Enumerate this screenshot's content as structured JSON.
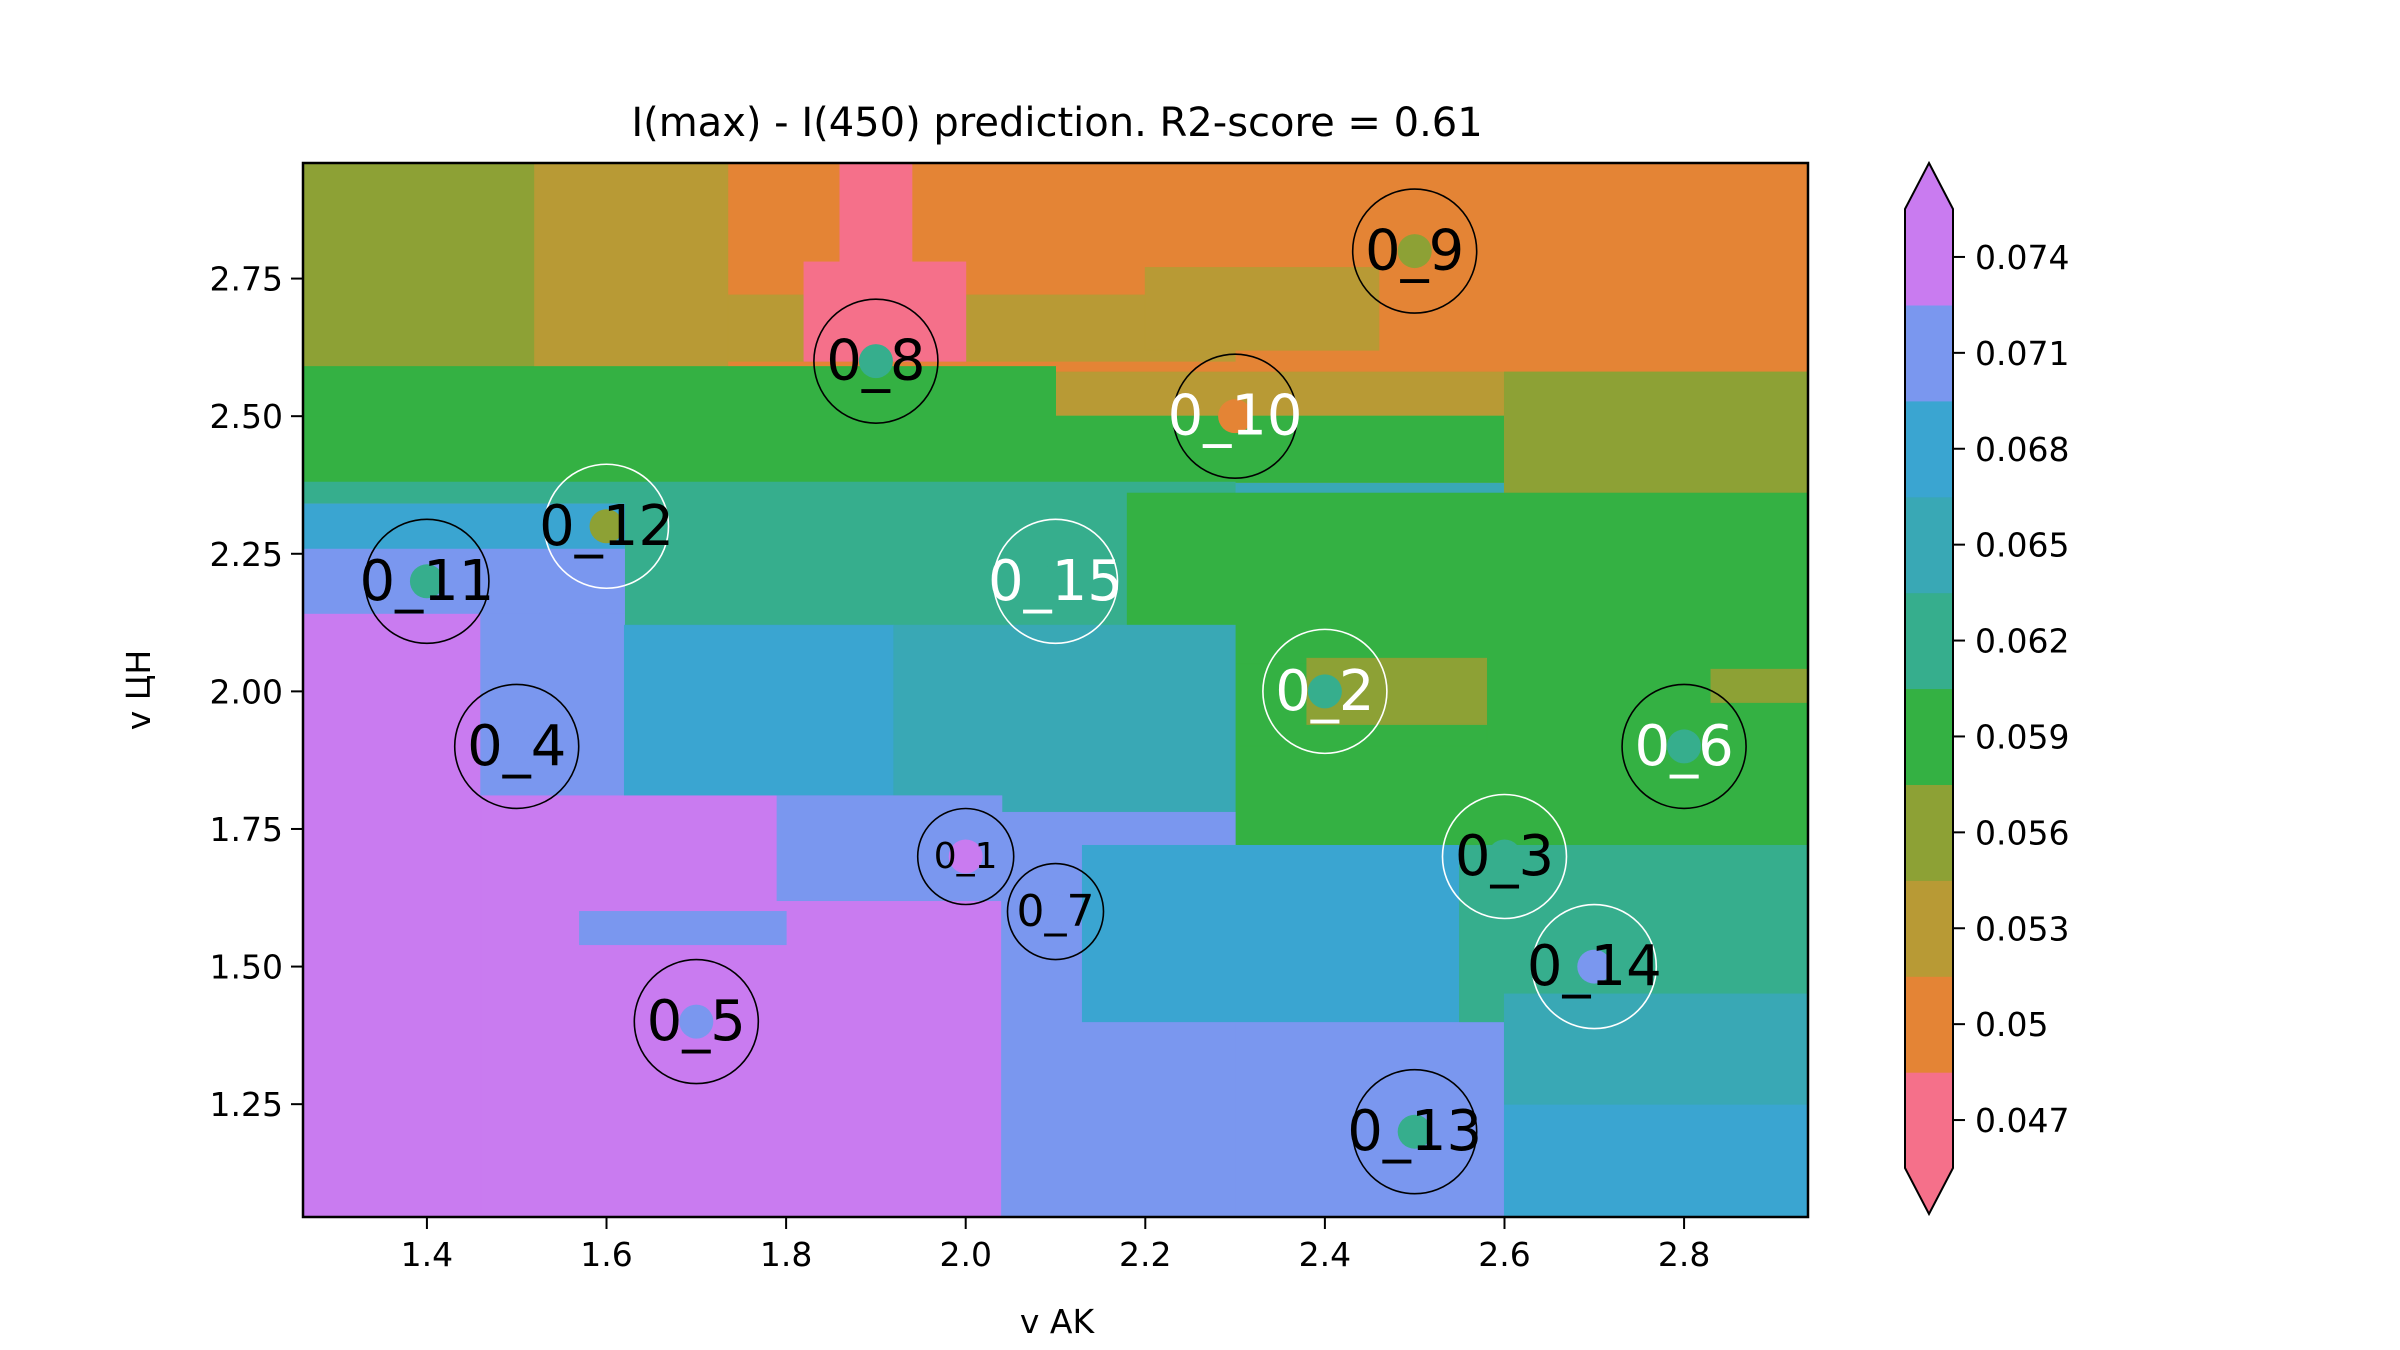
{
  "chart_data": {
    "type": "heatmap",
    "title": "I(max) - I(450) prediction. R2-score = 0.61",
    "xlabel": "v AK",
    "ylabel": "v ЦН",
    "xlim": [
      1.262,
      2.938
    ],
    "ylim": [
      1.045,
      2.96
    ],
    "xticks": [
      1.4,
      1.6,
      1.8,
      2.0,
      2.2,
      2.4,
      2.6,
      2.8
    ],
    "xtick_labels": [
      "1.4",
      "1.6",
      "1.8",
      "2.0",
      "2.2",
      "2.4",
      "2.6",
      "2.8"
    ],
    "yticks": [
      1.25,
      1.5,
      1.75,
      2.0,
      2.25,
      2.5,
      2.75
    ],
    "ytick_labels": [
      "1.25",
      "1.50",
      "1.75",
      "2.00",
      "2.25",
      "2.50",
      "2.75"
    ],
    "grid": false,
    "colorbar": {
      "levels": [
        0.047,
        0.05,
        0.053,
        0.056,
        0.059,
        0.062,
        0.065,
        0.068,
        0.071,
        0.074
      ],
      "labels": [
        "0.047",
        "0.05",
        "0.053",
        "0.056",
        "0.059",
        "0.062",
        "0.065",
        "0.068",
        "0.071",
        "0.074"
      ],
      "colors": [
        "#f5708a",
        "#e48435",
        "#b89a35",
        "#8da135",
        "#34b143",
        "#36ae8d",
        "#39a8b5",
        "#3aa5d1",
        "#7a97ef",
        "#c97bf0"
      ],
      "extend": "both"
    },
    "regions": [
      {
        "xmin": 1.262,
        "xmax": 2.938,
        "ymin": 1.045,
        "ymax": 2.96,
        "class": 6
      },
      {
        "xmin": 1.262,
        "xmax": 2.938,
        "ymin": 2.58,
        "ymax": 2.96,
        "class": 1
      },
      {
        "xmin": 1.262,
        "xmax": 1.52,
        "ymin": 2.58,
        "ymax": 2.96,
        "class": 3
      },
      {
        "xmin": 1.52,
        "xmax": 1.735,
        "ymin": 2.58,
        "ymax": 2.96,
        "class": 2
      },
      {
        "xmin": 1.735,
        "xmax": 2.3,
        "ymin": 2.6,
        "ymax": 2.72,
        "class": 2
      },
      {
        "xmin": 2.2,
        "xmax": 2.46,
        "ymin": 2.62,
        "ymax": 2.77,
        "class": 2
      },
      {
        "xmin": 1.86,
        "xmax": 1.94,
        "ymin": 2.62,
        "ymax": 2.96,
        "class": 0
      },
      {
        "xmin": 1.82,
        "xmax": 2.0,
        "ymin": 2.6,
        "ymax": 2.78,
        "class": 0
      },
      {
        "xmin": 1.262,
        "xmax": 2.938,
        "ymin": 2.47,
        "ymax": 2.58,
        "class": 2
      },
      {
        "xmin": 2.938,
        "xmax": 2.938,
        "ymin": 2.47,
        "ymax": 2.58,
        "class": 2
      },
      {
        "xmin": 1.262,
        "xmax": 2.938,
        "ymin": 2.38,
        "ymax": 2.47,
        "class": 3
      },
      {
        "xmin": 1.262,
        "xmax": 2.1,
        "ymin": 2.47,
        "ymax": 2.59,
        "class": 4
      },
      {
        "xmin": 1.262,
        "xmax": 2.938,
        "ymin": 2.38,
        "ymax": 2.5,
        "class": 4
      },
      {
        "xmin": 2.6,
        "xmax": 2.938,
        "ymin": 2.36,
        "ymax": 2.58,
        "class": 3
      },
      {
        "xmin": 1.262,
        "xmax": 2.3,
        "ymin": 2.1,
        "ymax": 2.38,
        "class": 5
      },
      {
        "xmin": 2.18,
        "xmax": 2.938,
        "ymin": 1.72,
        "ymax": 2.36,
        "class": 4
      },
      {
        "xmin": 2.25,
        "xmax": 2.58,
        "ymin": 1.9,
        "ymax": 2.05,
        "class": 4
      },
      {
        "xmin": 2.38,
        "xmax": 2.58,
        "ymin": 1.94,
        "ymax": 2.06,
        "class": 3
      },
      {
        "xmin": 2.83,
        "xmax": 2.938,
        "ymin": 1.98,
        "ymax": 2.04,
        "class": 3
      },
      {
        "xmin": 1.262,
        "xmax": 1.62,
        "ymin": 2.14,
        "ymax": 2.34,
        "class": 8
      },
      {
        "xmin": 1.262,
        "xmax": 1.62,
        "ymin": 2.26,
        "ymax": 2.34,
        "class": 7
      },
      {
        "xmin": 1.262,
        "xmax": 1.46,
        "ymin": 1.045,
        "ymax": 2.14,
        "class": 9
      },
      {
        "xmin": 1.46,
        "xmax": 1.62,
        "ymin": 1.81,
        "ymax": 2.14,
        "class": 8
      },
      {
        "xmin": 1.62,
        "xmax": 1.92,
        "ymin": 1.78,
        "ymax": 2.12,
        "class": 7
      },
      {
        "xmin": 1.92,
        "xmax": 2.3,
        "ymin": 1.72,
        "ymax": 2.12,
        "class": 6
      },
      {
        "xmin": 1.46,
        "xmax": 2.04,
        "ymin": 1.045,
        "ymax": 1.81,
        "class": 9
      },
      {
        "xmin": 1.79,
        "xmax": 2.04,
        "ymin": 1.62,
        "ymax": 1.81,
        "class": 8
      },
      {
        "xmin": 1.57,
        "xmax": 1.8,
        "ymin": 1.54,
        "ymax": 1.6,
        "class": 8
      },
      {
        "xmin": 2.04,
        "xmax": 2.3,
        "ymin": 1.045,
        "ymax": 1.78,
        "class": 8
      },
      {
        "xmin": 2.3,
        "xmax": 2.6,
        "ymin": 1.045,
        "ymax": 1.4,
        "class": 8
      },
      {
        "xmin": 2.13,
        "xmax": 2.6,
        "ymin": 1.4,
        "ymax": 1.72,
        "class": 7
      },
      {
        "xmin": 2.6,
        "xmax": 2.938,
        "ymin": 1.045,
        "ymax": 1.4,
        "class": 7
      },
      {
        "xmin": 2.55,
        "xmax": 2.938,
        "ymin": 1.4,
        "ymax": 1.72,
        "class": 5
      },
      {
        "xmin": 2.6,
        "xmax": 2.938,
        "ymin": 1.25,
        "ymax": 1.45,
        "class": 6
      }
    ],
    "points": [
      {
        "label": "0_1",
        "x": 2.0,
        "y": 1.7,
        "class": 9,
        "font": "small",
        "text_color": "#000000",
        "ring_color": "#000000"
      },
      {
        "label": "0_2",
        "x": 2.4,
        "y": 2.0,
        "class": 5,
        "font": "large",
        "text_color": "#ffffff",
        "ring_color": "#ffffff"
      },
      {
        "label": "0_3",
        "x": 2.6,
        "y": 1.7,
        "class": 5,
        "font": "large",
        "text_color": "#000000",
        "ring_color": "#ffffff"
      },
      {
        "label": "0_4",
        "x": 1.5,
        "y": 1.9,
        "class": 8,
        "font": "large",
        "text_color": "#000000",
        "ring_color": "#000000"
      },
      {
        "label": "0_5",
        "x": 1.7,
        "y": 1.4,
        "class": 8,
        "font": "large",
        "text_color": "#000000",
        "ring_color": "#000000"
      },
      {
        "label": "0_6",
        "x": 2.8,
        "y": 1.9,
        "class": 5,
        "font": "large",
        "text_color": "#ffffff",
        "ring_color": "#000000"
      },
      {
        "label": "0_7",
        "x": 2.1,
        "y": 1.6,
        "class": 8,
        "font": "medium",
        "text_color": "#000000",
        "ring_color": "#000000"
      },
      {
        "label": "0_8",
        "x": 1.9,
        "y": 2.6,
        "class": 5,
        "font": "large",
        "text_color": "#000000",
        "ring_color": "#000000"
      },
      {
        "label": "0_9",
        "x": 2.5,
        "y": 2.8,
        "class": 3,
        "font": "large",
        "text_color": "#000000",
        "ring_color": "#000000"
      },
      {
        "label": "0_10",
        "x": 2.3,
        "y": 2.5,
        "class": 1,
        "font": "large",
        "text_color": "#ffffff",
        "ring_color": "#000000"
      },
      {
        "label": "0_11",
        "x": 1.4,
        "y": 2.2,
        "class": 5,
        "font": "large",
        "text_color": "#000000",
        "ring_color": "#000000"
      },
      {
        "label": "0_12",
        "x": 1.6,
        "y": 2.3,
        "class": 3,
        "font": "large",
        "text_color": "#000000",
        "ring_color": "#ffffff"
      },
      {
        "label": "0_13",
        "x": 2.5,
        "y": 1.2,
        "class": 5,
        "font": "large",
        "text_color": "#000000",
        "ring_color": "#000000"
      },
      {
        "label": "0_14",
        "x": 2.7,
        "y": 1.5,
        "class": 8,
        "font": "large",
        "text_color": "#000000",
        "ring_color": "#ffffff"
      },
      {
        "label": "0_15",
        "x": 2.1,
        "y": 2.2,
        "class": 5,
        "font": "large",
        "text_color": "#ffffff",
        "ring_color": "#ffffff"
      }
    ]
  }
}
